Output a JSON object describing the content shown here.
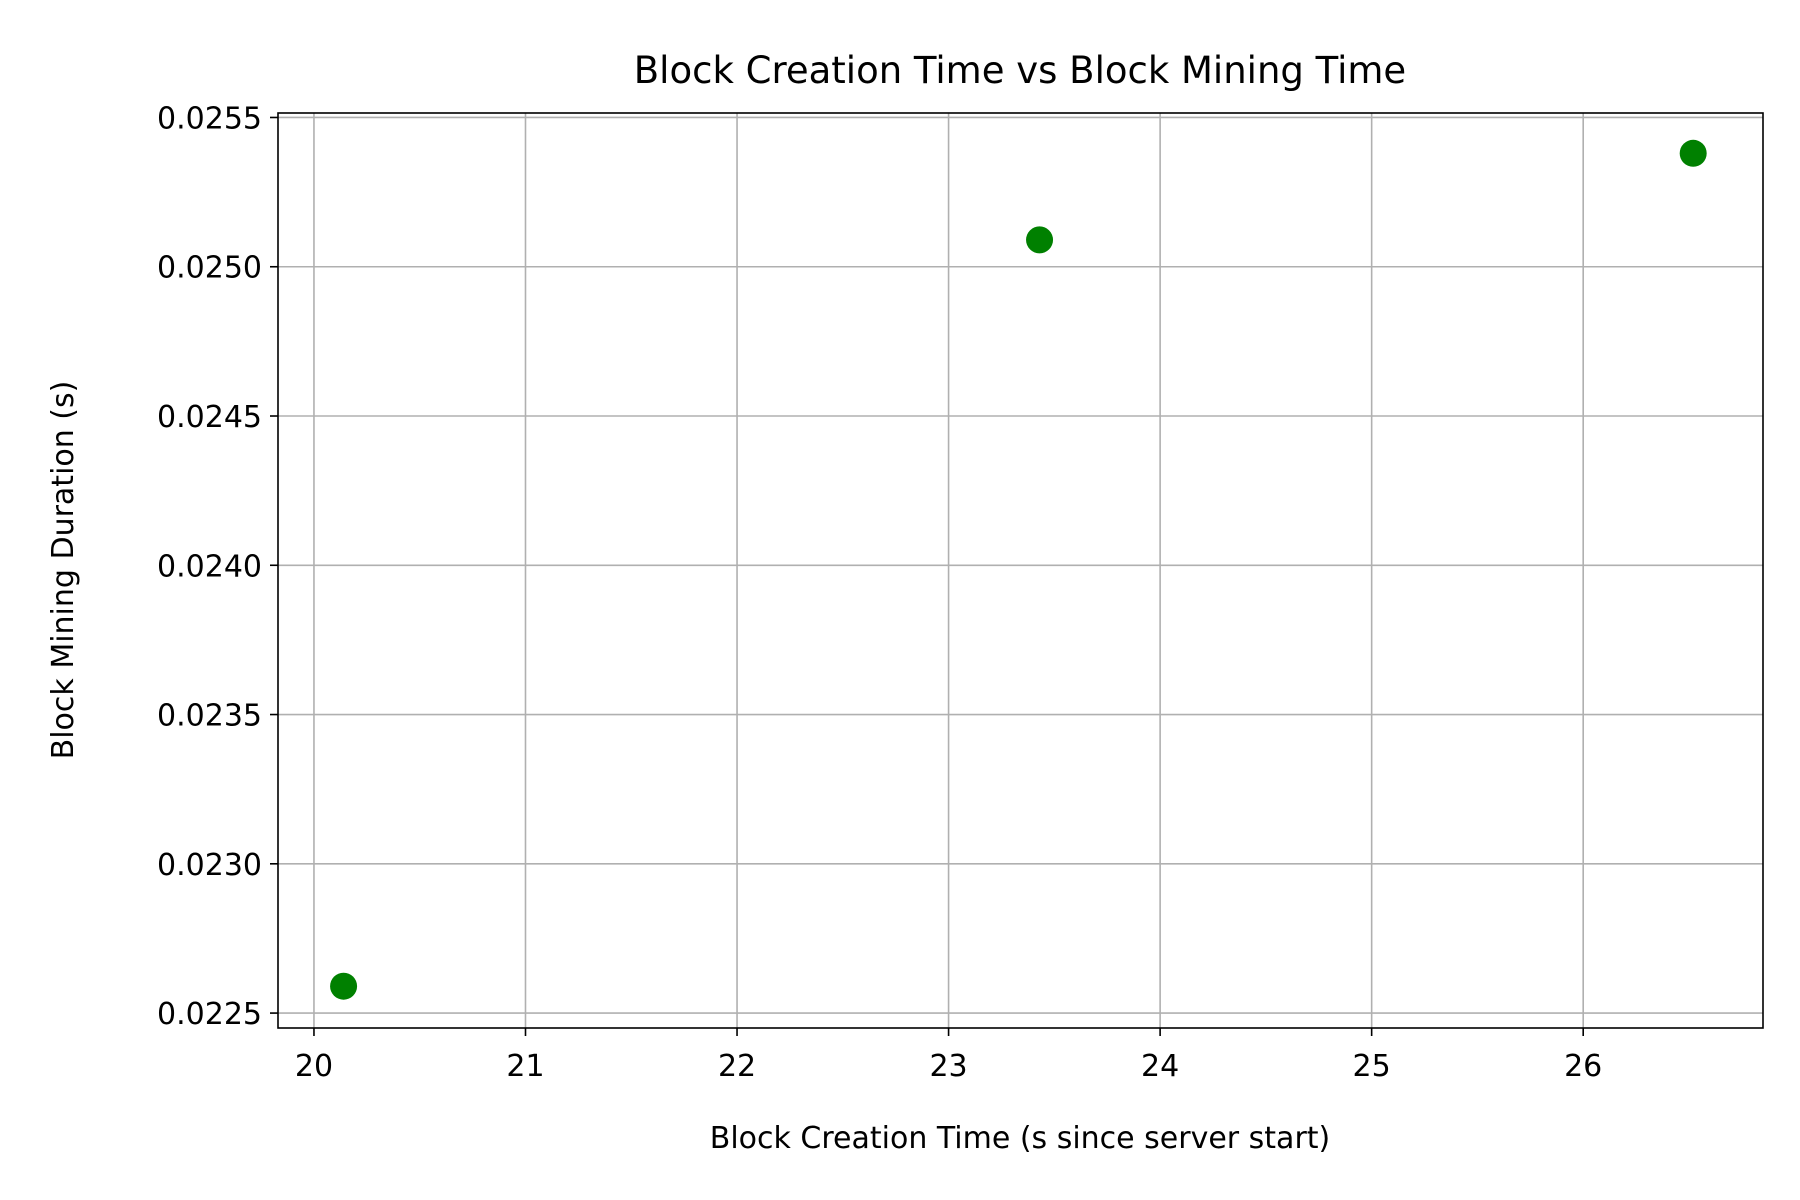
{
  "chart_data": {
    "type": "scatter",
    "title": "Block Creation Time vs Block Mining Time",
    "xlabel": "Block Creation Time (s since server start)",
    "ylabel": "Block Mining Duration (s)",
    "xlim": [
      19.83,
      26.85
    ],
    "ylim": [
      0.02245,
      0.025515
    ],
    "xticks": [
      20,
      21,
      22,
      23,
      24,
      25,
      26
    ],
    "xtick_labels": [
      "20",
      "21",
      "22",
      "23",
      "24",
      "25",
      "26"
    ],
    "yticks": [
      0.0225,
      0.023,
      0.0235,
      0.024,
      0.0245,
      0.025,
      0.0255
    ],
    "ytick_labels": [
      "0.0225",
      "0.0230",
      "0.0235",
      "0.0240",
      "0.0245",
      "0.0250",
      "0.0255"
    ],
    "grid": true,
    "marker_color": "#008000",
    "points": [
      {
        "x": 20.14,
        "y": 0.02259
      },
      {
        "x": 23.43,
        "y": 0.02509
      },
      {
        "x": 26.52,
        "y": 0.02538
      }
    ]
  }
}
